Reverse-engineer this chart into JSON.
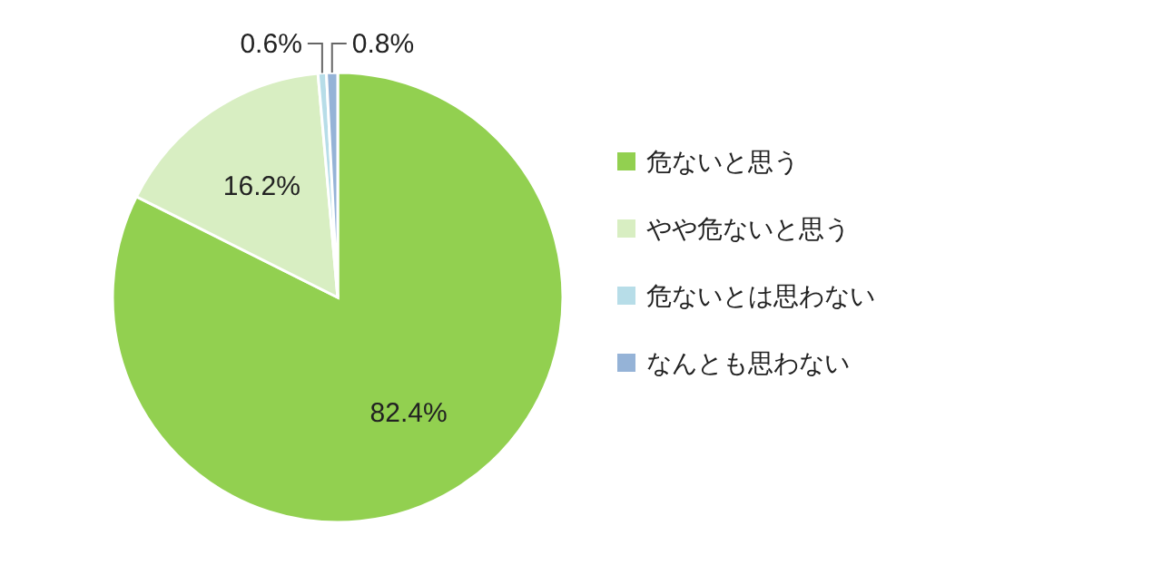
{
  "chart_data": {
    "type": "pie",
    "categories": [
      "危ないと思う",
      "やや危ないと思う",
      "危ないとは思わない",
      "なんとも思わない"
    ],
    "values": [
      82.4,
      16.2,
      0.6,
      0.8
    ],
    "colors": [
      "#92d050",
      "#d8eec2",
      "#b7dde8",
      "#95b3d7"
    ],
    "value_labels": [
      "82.4%",
      "16.2%",
      "0.6%",
      "0.8%"
    ],
    "legend": "right"
  }
}
